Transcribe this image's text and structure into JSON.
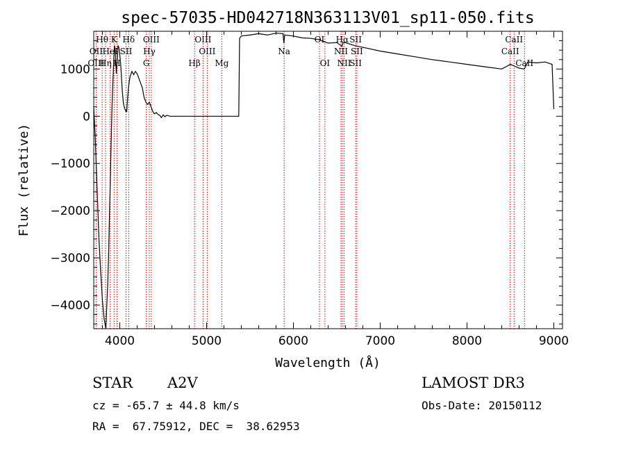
{
  "chart_data": {
    "type": "line",
    "title": "spec-57035-HD042718N363113V01_sp11-050.fits",
    "xlabel": "Wavelength (Å)",
    "ylabel": "Flux (relative)",
    "xlim": [
      3700,
      9100
    ],
    "ylim": [
      -4500,
      1800
    ],
    "x_ticks": [
      4000,
      5000,
      6000,
      7000,
      8000,
      9000
    ],
    "y_ticks": [
      -4000,
      -3000,
      -2000,
      -1000,
      0,
      1000
    ],
    "series": [
      {
        "name": "spectrum",
        "x": [
          3700,
          3720,
          3740,
          3760,
          3780,
          3800,
          3820,
          3840,
          3850,
          3860,
          3870,
          3880,
          3890,
          3900,
          3910,
          3920,
          3930,
          3940,
          3950,
          3960,
          3970,
          3980,
          3990,
          4000,
          4010,
          4020,
          4030,
          4040,
          4050,
          4060,
          4070,
          4080,
          4090,
          4100,
          4110,
          4120,
          4140,
          4160,
          4180,
          4200,
          4220,
          4240,
          4260,
          4280,
          4300,
          4320,
          4340,
          4360,
          4380,
          4400,
          4420,
          4440,
          4460,
          4480,
          4500,
          4520,
          4540,
          4560,
          4580,
          4600,
          4800,
          5000,
          5200,
          5370,
          5380,
          5400,
          5500,
          5600,
          5700,
          5800,
          5880,
          5890,
          5900,
          6000,
          6100,
          6200,
          6300,
          6400,
          6500,
          6560,
          6570,
          6600,
          6700,
          6800,
          7000,
          7200,
          7400,
          7600,
          7800,
          8000,
          8200,
          8400,
          8500,
          8600,
          8660,
          8700,
          8800,
          8900,
          8980,
          9000
        ],
        "y": [
          200,
          -600,
          -1600,
          -2600,
          -3300,
          -3900,
          -4300,
          -4500,
          -4000,
          -3600,
          -3000,
          -2200,
          -1400,
          -600,
          200,
          700,
          1200,
          1500,
          1300,
          900,
          1200,
          1500,
          1450,
          1300,
          1100,
          800,
          500,
          300,
          200,
          150,
          100,
          100,
          400,
          600,
          750,
          850,
          950,
          880,
          950,
          900,
          800,
          700,
          600,
          400,
          300,
          250,
          300,
          200,
          100,
          50,
          80,
          40,
          20,
          -30,
          30,
          -10,
          20,
          10,
          0,
          0,
          0,
          0,
          0,
          0,
          1650,
          1700,
          1720,
          1750,
          1720,
          1760,
          1750,
          1550,
          1720,
          1700,
          1660,
          1650,
          1620,
          1550,
          1560,
          1480,
          1560,
          1560,
          1500,
          1460,
          1380,
          1320,
          1260,
          1200,
          1150,
          1100,
          1050,
          1000,
          1100,
          1020,
          1000,
          1150,
          1130,
          1150,
          1100,
          150
        ]
      }
    ],
    "line_markers": [
      {
        "label": "Hθ",
        "x": 3797,
        "row": 1
      },
      {
        "label": "K",
        "x": 3934,
        "row": 1
      },
      {
        "label": "Hδ",
        "x": 4102,
        "row": 1
      },
      {
        "label": "OIII",
        "x": 4363,
        "row": 1
      },
      {
        "label": "OIII",
        "x": 4959,
        "row": 1
      },
      {
        "label": "OI",
        "x": 6300,
        "row": 1
      },
      {
        "label": "Hα",
        "x": 6563,
        "row": 1
      },
      {
        "label": "SII",
        "x": 6717,
        "row": 1
      },
      {
        "label": "CaII",
        "x": 8542,
        "row": 1
      },
      {
        "label": "OII",
        "x": 3727,
        "row": 2
      },
      {
        "label": "HeI",
        "x": 3889,
        "row": 2
      },
      {
        "label": "SII",
        "x": 4072,
        "row": 2
      },
      {
        "label": "Hγ",
        "x": 4340,
        "row": 2
      },
      {
        "label": "OIII",
        "x": 5007,
        "row": 2
      },
      {
        "label": "Na",
        "x": 5893,
        "row": 2
      },
      {
        "label": "NII",
        "x": 6548,
        "row": 2
      },
      {
        "label": "SII",
        "x": 6731,
        "row": 2
      },
      {
        "label": "CaII",
        "x": 8498,
        "row": 2
      },
      {
        "label": "OIII",
        "x": 3727,
        "row": 3
      },
      {
        "label": "Hη",
        "x": 3835,
        "row": 3
      },
      {
        "label": "H",
        "x": 3968,
        "row": 3
      },
      {
        "label": "G",
        "x": 4305,
        "row": 3
      },
      {
        "label": "Hβ",
        "x": 4861,
        "row": 3
      },
      {
        "label": "Mg",
        "x": 5175,
        "row": 3
      },
      {
        "label": "OI",
        "x": 6363,
        "row": 3
      },
      {
        "label": "NII",
        "x": 6584,
        "row": 3
      },
      {
        "label": "SII",
        "x": 6717,
        "row": 3
      },
      {
        "label": "CaII",
        "x": 8662,
        "row": 3
      }
    ]
  },
  "info": {
    "object_type": "STAR",
    "spectral_class": "A2V",
    "survey": "LAMOST DR3",
    "cz": "cz = -65.7 ± 44.8 km/s",
    "obs_date": "Obs-Date: 20150112",
    "coords": "RA =  67.75912, DEC =  38.62953"
  }
}
